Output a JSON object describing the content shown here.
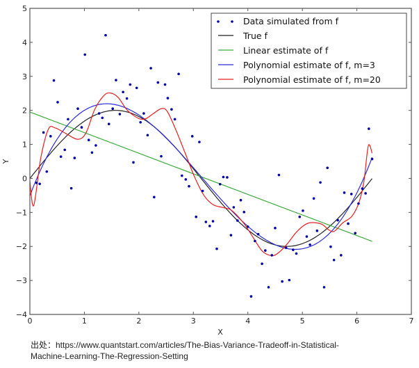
{
  "chart_data": {
    "type": "scatter",
    "xlabel": "X",
    "ylabel": "Y",
    "xlim": [
      0,
      7
    ],
    "ylim": [
      -4,
      5
    ],
    "xticks": [
      "0",
      "1",
      "2",
      "3",
      "4",
      "5",
      "6",
      "7"
    ],
    "yticks": [
      "5",
      "4",
      "3",
      "2",
      "1",
      "0",
      "-1",
      "-2",
      "-3",
      "-4"
    ],
    "grid": false,
    "legend_position": "top-right",
    "colors": {
      "data": "#0000aa",
      "true": "#222222",
      "linear": "#3aaa3a",
      "poly3": "#2b2bdd",
      "poly20": "#e82020"
    },
    "series": [
      {
        "name": "Data simulated from f",
        "kind": "points",
        "points": [
          [
            0.12,
            -0.13
          ],
          [
            0.18,
            -0.16
          ],
          [
            0.25,
            1.35
          ],
          [
            0.31,
            0.2
          ],
          [
            0.38,
            1.24
          ],
          [
            0.44,
            2.88
          ],
          [
            0.51,
            2.24
          ],
          [
            0.57,
            0.64
          ],
          [
            0.64,
            0.84
          ],
          [
            0.7,
            1.74
          ],
          [
            0.76,
            -0.29
          ],
          [
            0.82,
            0.6
          ],
          [
            0.88,
            2.05
          ],
          [
            0.95,
            1.5
          ],
          [
            1.01,
            3.64
          ],
          [
            1.08,
            1.13
          ],
          [
            1.14,
            0.76
          ],
          [
            1.21,
            0.97
          ],
          [
            1.27,
            1.91
          ],
          [
            1.33,
            1.78
          ],
          [
            1.39,
            4.21
          ],
          [
            1.45,
            1.6
          ],
          [
            1.52,
            2.05
          ],
          [
            1.58,
            2.89
          ],
          [
            1.65,
            1.89
          ],
          [
            1.71,
            2.54
          ],
          [
            1.78,
            2.35
          ],
          [
            1.84,
            2.76
          ],
          [
            1.9,
            0.47
          ],
          [
            1.96,
            2.66
          ],
          [
            2.03,
            1.65
          ],
          [
            2.09,
            1.91
          ],
          [
            2.16,
            1.27
          ],
          [
            2.22,
            3.24
          ],
          [
            2.28,
            -0.55
          ],
          [
            2.35,
            2.82
          ],
          [
            2.41,
            0.65
          ],
          [
            2.48,
            2.76
          ],
          [
            2.53,
            2.36
          ],
          [
            2.6,
            2.03
          ],
          [
            2.66,
            1.74
          ],
          [
            2.73,
            3.07
          ],
          [
            2.79,
            0.08
          ],
          [
            2.86,
            -0.03
          ],
          [
            2.92,
            -0.23
          ],
          [
            2.98,
            1.24
          ],
          [
            3.05,
            -1.13
          ],
          [
            3.11,
            1.07
          ],
          [
            3.17,
            -0.37
          ],
          [
            3.23,
            -1.28
          ],
          [
            3.3,
            -1.4
          ],
          [
            3.36,
            -1.26
          ],
          [
            3.43,
            -2.07
          ],
          [
            3.49,
            -0.17
          ],
          [
            3.55,
            0.04
          ],
          [
            3.62,
            0.03
          ],
          [
            3.69,
            -1.67
          ],
          [
            3.74,
            -0.85
          ],
          [
            3.81,
            -1.24
          ],
          [
            3.87,
            -0.64
          ],
          [
            3.93,
            -0.99
          ],
          [
            4.0,
            -1.42
          ],
          [
            4.06,
            -3.47
          ],
          [
            4.13,
            -1.84
          ],
          [
            4.19,
            -1.64
          ],
          [
            4.26,
            -2.51
          ],
          [
            4.32,
            -2.12
          ],
          [
            4.38,
            -3.2
          ],
          [
            4.44,
            -2.26
          ],
          [
            4.5,
            -1.46
          ],
          [
            4.57,
            0.1
          ],
          [
            4.63,
            -3.03
          ],
          [
            4.7,
            -2.04
          ],
          [
            4.76,
            -2.99
          ],
          [
            4.83,
            -2.1
          ],
          [
            4.89,
            -2.21
          ],
          [
            4.95,
            -1.13
          ],
          [
            5.01,
            -0.95
          ],
          [
            5.08,
            -1.71
          ],
          [
            5.14,
            -1.95
          ],
          [
            5.21,
            -0.59
          ],
          [
            5.27,
            -1.54
          ],
          [
            5.33,
            -0.12
          ],
          [
            5.4,
            -3.2
          ],
          [
            5.46,
            0.31
          ],
          [
            5.52,
            -2.01
          ],
          [
            5.58,
            -2.4
          ],
          [
            5.65,
            -1.23
          ],
          [
            5.71,
            -2.26
          ],
          [
            5.77,
            -0.42
          ],
          [
            5.84,
            -1.33
          ],
          [
            5.9,
            -0.46
          ],
          [
            5.97,
            -1.61
          ],
          [
            6.03,
            -0.74
          ],
          [
            6.1,
            -0.3
          ],
          [
            6.16,
            -0.44
          ],
          [
            6.22,
            1.46
          ],
          [
            6.28,
            0.57
          ]
        ]
      },
      {
        "name": "True f",
        "kind": "function",
        "formula": "2*sin(x)",
        "domain": [
          0,
          6.28
        ]
      },
      {
        "name": "Linear estimate of f",
        "kind": "line",
        "points": [
          [
            0,
            1.95
          ],
          [
            6.28,
            -1.85
          ]
        ]
      },
      {
        "name": "Polynomial estimate of f, m=3",
        "kind": "polyfit",
        "degree": 3,
        "domain": [
          0,
          6.28
        ]
      },
      {
        "name": "Polynomial estimate of f, m=20",
        "kind": "curve",
        "points": [
          [
            0,
            -0.08
          ],
          [
            0.07,
            -0.8
          ],
          [
            0.2,
            0.6
          ],
          [
            0.34,
            1.45
          ],
          [
            0.47,
            1.48
          ],
          [
            0.66,
            1.32
          ],
          [
            0.88,
            1.15
          ],
          [
            1.03,
            1.34
          ],
          [
            1.19,
            2.03
          ],
          [
            1.36,
            2.44
          ],
          [
            1.48,
            2.51
          ],
          [
            1.62,
            2.38
          ],
          [
            1.79,
            2.0
          ],
          [
            2.0,
            1.76
          ],
          [
            2.13,
            1.76
          ],
          [
            2.26,
            1.9
          ],
          [
            2.41,
            2.05
          ],
          [
            2.52,
            1.97
          ],
          [
            2.68,
            1.42
          ],
          [
            2.85,
            0.74
          ],
          [
            3.02,
            0.05
          ],
          [
            3.19,
            -0.49
          ],
          [
            3.36,
            -0.77
          ],
          [
            3.55,
            -0.86
          ],
          [
            3.7,
            -0.94
          ],
          [
            3.92,
            -1.31
          ],
          [
            4.09,
            -1.72
          ],
          [
            4.26,
            -2.13
          ],
          [
            4.43,
            -2.27
          ],
          [
            4.55,
            -2.2
          ],
          [
            4.72,
            -1.93
          ],
          [
            4.89,
            -1.58
          ],
          [
            5.06,
            -1.35
          ],
          [
            5.19,
            -1.3
          ],
          [
            5.36,
            -1.35
          ],
          [
            5.49,
            -1.52
          ],
          [
            5.59,
            -1.55
          ],
          [
            5.74,
            -1.31
          ],
          [
            5.91,
            -1.11
          ],
          [
            6.04,
            -0.7
          ],
          [
            6.13,
            -0.08
          ],
          [
            6.21,
            0.96
          ],
          [
            6.28,
            0.74
          ]
        ]
      }
    ]
  },
  "caption": {
    "line1": "出处：https://www.quantstart.com/articles/The-Bias-Variance-Tradeoff-in-Statistical-",
    "line2": "Machine-Learning-The-Regression-Setting"
  }
}
